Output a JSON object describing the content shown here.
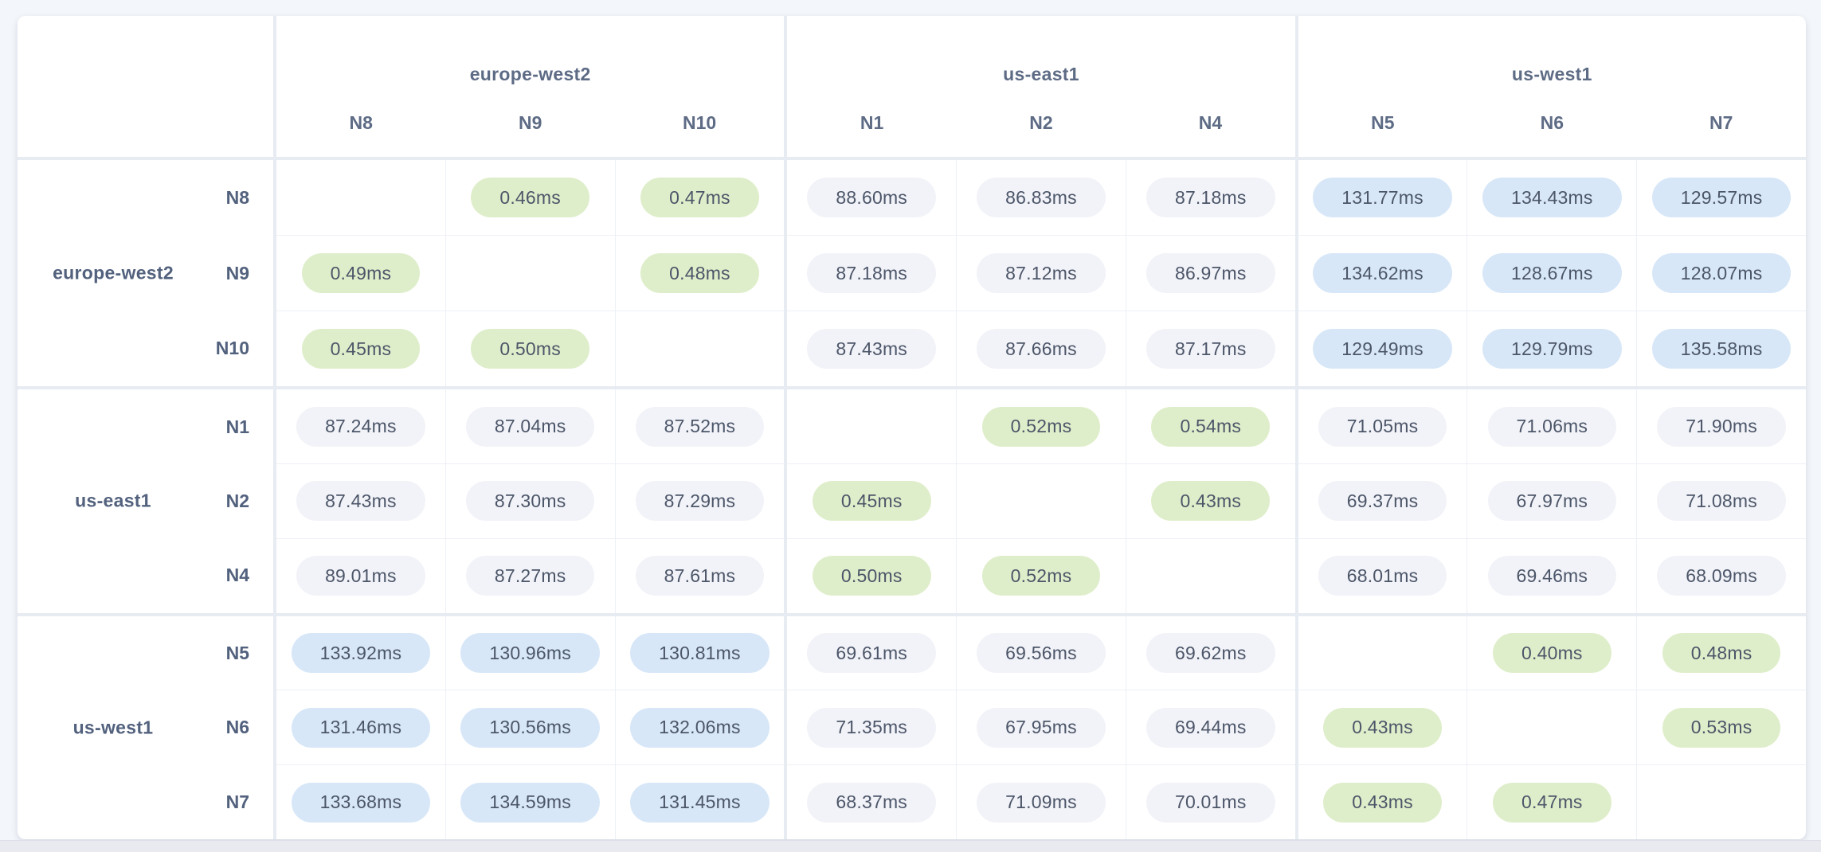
{
  "page": {
    "background_color": "#f3f6fa",
    "card_color": "#ffffff",
    "divider_color": "#e7ebf2"
  },
  "table": {
    "unit": "ms",
    "column_groups": [
      {
        "label": "europe-west2",
        "nodes": [
          "N8",
          "N9",
          "N10"
        ]
      },
      {
        "label": "us-east1",
        "nodes": [
          "N1",
          "N2",
          "N4"
        ]
      },
      {
        "label": "us-west1",
        "nodes": [
          "N5",
          "N6",
          "N7"
        ]
      }
    ],
    "row_groups": [
      {
        "label": "europe-west2",
        "nodes": [
          "N8",
          "N9",
          "N10"
        ]
      },
      {
        "label": "us-east1",
        "nodes": [
          "N1",
          "N2",
          "N4"
        ]
      },
      {
        "label": "us-west1",
        "nodes": [
          "N5",
          "N6",
          "N7"
        ]
      }
    ],
    "cells": [
      [
        null,
        "0.46ms",
        "0.47ms",
        "88.60ms",
        "86.83ms",
        "87.18ms",
        "131.77ms",
        "134.43ms",
        "129.57ms"
      ],
      [
        "0.49ms",
        null,
        "0.48ms",
        "87.18ms",
        "87.12ms",
        "86.97ms",
        "134.62ms",
        "128.67ms",
        "128.07ms"
      ],
      [
        "0.45ms",
        "0.50ms",
        null,
        "87.43ms",
        "87.66ms",
        "87.17ms",
        "129.49ms",
        "129.79ms",
        "135.58ms"
      ],
      [
        "87.24ms",
        "87.04ms",
        "87.52ms",
        null,
        "0.52ms",
        "0.54ms",
        "71.05ms",
        "71.06ms",
        "71.90ms"
      ],
      [
        "87.43ms",
        "87.30ms",
        "87.29ms",
        "0.45ms",
        null,
        "0.43ms",
        "69.37ms",
        "67.97ms",
        "71.08ms"
      ],
      [
        "89.01ms",
        "87.27ms",
        "87.61ms",
        "0.50ms",
        "0.52ms",
        null,
        "68.01ms",
        "69.46ms",
        "68.09ms"
      ],
      [
        "133.92ms",
        "130.96ms",
        "130.81ms",
        "69.61ms",
        "69.56ms",
        "69.62ms",
        null,
        "0.40ms",
        "0.48ms"
      ],
      [
        "131.46ms",
        "130.56ms",
        "132.06ms",
        "71.35ms",
        "67.95ms",
        "69.44ms",
        "0.43ms",
        null,
        "0.53ms"
      ],
      [
        "133.68ms",
        "134.59ms",
        "131.45ms",
        "68.37ms",
        "71.09ms",
        "70.01ms",
        "0.43ms",
        "0.47ms",
        null
      ]
    ],
    "legend_colors": {
      "low": "#dfeeca",
      "mid": "#f2f3f8",
      "high": "#d7e7f8",
      "text": "#4c5669"
    },
    "color_rules": {
      "low_below_ms": 1,
      "high_at_or_above_ms": 100
    }
  }
}
